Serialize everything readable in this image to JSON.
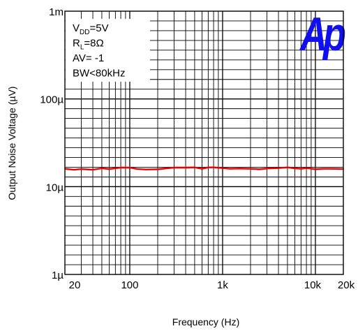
{
  "chart_data": {
    "type": "line",
    "x_scale": "log",
    "y_scale": "log",
    "xlim": [
      20,
      20000
    ],
    "ylim": [
      1,
      1000
    ],
    "xlabel": "Frequency (Hz)",
    "ylabel": "Output Noise Voltage (µV)",
    "x_ticks": [
      {
        "value": 20,
        "label": "20"
      },
      {
        "value": 100,
        "label": "100"
      },
      {
        "value": 1000,
        "label": "1k"
      },
      {
        "value": 10000,
        "label": "10k"
      },
      {
        "value": 20000,
        "label": "20k"
      }
    ],
    "y_ticks": [
      {
        "value": 1,
        "label": "1µ"
      },
      {
        "value": 10,
        "label": "10µ"
      },
      {
        "value": 100,
        "label": "100µ"
      },
      {
        "value": 1000,
        "label": "1m"
      }
    ],
    "conditions": [
      {
        "main": "V",
        "sub": "DD",
        "rest": "=5V"
      },
      {
        "main": "R",
        "sub": "L",
        "rest": "=8Ω"
      },
      {
        "main": "AV= -1",
        "sub": "",
        "rest": ""
      },
      {
        "main": "BW<80kHz",
        "sub": "",
        "rest": ""
      }
    ],
    "logo_text": "Ap",
    "grid": true,
    "series": [
      {
        "color": "#ee0000",
        "x": [
          20,
          25,
          30,
          40,
          50,
          60,
          80,
          100,
          120,
          150,
          200,
          250,
          300,
          400,
          500,
          600,
          700,
          800,
          1000,
          1200,
          1500,
          2000,
          2500,
          3000,
          4000,
          5000,
          6000,
          7000,
          8000,
          10000,
          12000,
          15000,
          20000
        ],
        "y": [
          16,
          15.6,
          15.9,
          15.6,
          16.2,
          15.9,
          16.5,
          16.5,
          15.9,
          15.7,
          15.8,
          16.2,
          16.5,
          16.5,
          16.6,
          16,
          16.6,
          16.6,
          16.3,
          16,
          16.1,
          16,
          15.8,
          16.1,
          16.3,
          16.6,
          16.2,
          16,
          16.3,
          15.8,
          16,
          16,
          15.9
        ]
      }
    ]
  }
}
